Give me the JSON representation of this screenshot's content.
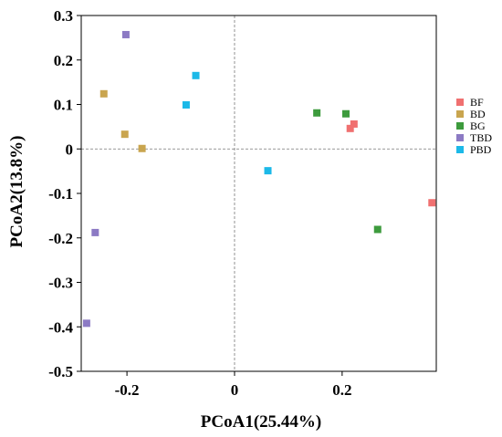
{
  "chart_data": {
    "type": "scatter",
    "xlabel": "PCoA1(25.44%)",
    "ylabel": "PCoA2(13.8%)",
    "xlim": [
      -0.285,
      0.375
    ],
    "ylim": [
      -0.5,
      0.3
    ],
    "x_ticks": [
      {
        "value": -0.2,
        "label": "-0.2"
      },
      {
        "value": 0,
        "label": "0"
      },
      {
        "value": 0.2,
        "label": "0.2"
      }
    ],
    "y_ticks": [
      {
        "value": 0.3,
        "label": "0.3"
      },
      {
        "value": 0.2,
        "label": "0.2"
      },
      {
        "value": 0.1,
        "label": "0.1"
      },
      {
        "value": 0,
        "label": "0"
      },
      {
        "value": -0.1,
        "label": "-0.1"
      },
      {
        "value": -0.2,
        "label": "-0.2"
      },
      {
        "value": -0.3,
        "label": "-0.3"
      },
      {
        "value": -0.4,
        "label": "-0.4"
      },
      {
        "value": -0.5,
        "label": "-0.5"
      }
    ],
    "zero_lines": true,
    "grid": false,
    "legend_position": "right",
    "series": [
      {
        "name": "BF",
        "color": "#f07070",
        "points": [
          [
            0.215,
            0.046
          ],
          [
            0.222,
            0.056
          ],
          [
            0.367,
            -0.121
          ]
        ]
      },
      {
        "name": "BD",
        "color": "#c9a54f",
        "points": [
          [
            -0.243,
            0.124
          ],
          [
            -0.204,
            0.033
          ],
          [
            -0.172,
            0.001
          ]
        ]
      },
      {
        "name": "BG",
        "color": "#3d9b3d",
        "points": [
          [
            0.153,
            0.081
          ],
          [
            0.207,
            0.079
          ],
          [
            0.266,
            -0.181
          ]
        ]
      },
      {
        "name": "TBD",
        "color": "#8c7ac4",
        "points": [
          [
            -0.202,
            0.257
          ],
          [
            -0.259,
            -0.188
          ],
          [
            -0.275,
            -0.392
          ]
        ]
      },
      {
        "name": "PBD",
        "color": "#1cb9e8",
        "points": [
          [
            -0.072,
            0.165
          ],
          [
            -0.09,
            0.099
          ],
          [
            0.062,
            -0.049
          ]
        ]
      }
    ]
  }
}
